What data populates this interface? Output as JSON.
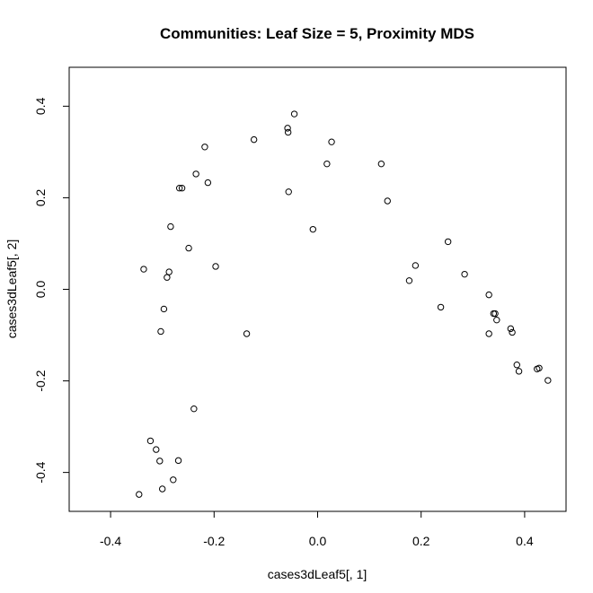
{
  "chart_data": {
    "type": "scatter",
    "title": "Communities: Leaf Size = 5, Proximity MDS",
    "xlabel": "cases3dLeaf5[, 1]",
    "ylabel": "cases3dLeaf5[, 2]",
    "xlim": [
      -0.48,
      0.48
    ],
    "ylim": [
      -0.485,
      0.485
    ],
    "xticks": [
      -0.4,
      -0.2,
      0.0,
      0.2,
      0.4
    ],
    "xtick_labels": [
      "-0.4",
      "-0.2",
      "0.0",
      "0.2",
      "0.4"
    ],
    "yticks": [
      -0.4,
      -0.2,
      0.0,
      0.2,
      0.4
    ],
    "ytick_labels": [
      "-0.4",
      "-0.2",
      "0.0",
      "0.2",
      "0.4"
    ],
    "grid": false,
    "legend": "none",
    "points": [
      {
        "x": -0.045,
        "y": 0.383
      },
      {
        "x": -0.058,
        "y": 0.352
      },
      {
        "x": -0.057,
        "y": 0.343
      },
      {
        "x": -0.123,
        "y": 0.327
      },
      {
        "x": 0.027,
        "y": 0.322
      },
      {
        "x": -0.218,
        "y": 0.311
      },
      {
        "x": 0.018,
        "y": 0.274
      },
      {
        "x": 0.123,
        "y": 0.274
      },
      {
        "x": -0.235,
        "y": 0.252
      },
      {
        "x": -0.212,
        "y": 0.233
      },
      {
        "x": -0.267,
        "y": 0.221
      },
      {
        "x": -0.262,
        "y": 0.221
      },
      {
        "x": -0.056,
        "y": 0.213
      },
      {
        "x": 0.135,
        "y": 0.193
      },
      {
        "x": -0.284,
        "y": 0.137
      },
      {
        "x": -0.009,
        "y": 0.131
      },
      {
        "x": 0.252,
        "y": 0.104
      },
      {
        "x": -0.249,
        "y": 0.09
      },
      {
        "x": -0.197,
        "y": 0.05
      },
      {
        "x": 0.189,
        "y": 0.052
      },
      {
        "x": -0.336,
        "y": 0.044
      },
      {
        "x": -0.287,
        "y": 0.038
      },
      {
        "x": -0.291,
        "y": 0.026
      },
      {
        "x": 0.284,
        "y": 0.033
      },
      {
        "x": 0.177,
        "y": 0.019
      },
      {
        "x": 0.331,
        "y": -0.012
      },
      {
        "x": -0.297,
        "y": -0.043
      },
      {
        "x": 0.238,
        "y": -0.039
      },
      {
        "x": 0.34,
        "y": -0.053
      },
      {
        "x": 0.343,
        "y": -0.053
      },
      {
        "x": 0.346,
        "y": -0.067
      },
      {
        "x": -0.303,
        "y": -0.092
      },
      {
        "x": -0.137,
        "y": -0.097
      },
      {
        "x": 0.373,
        "y": -0.086
      },
      {
        "x": 0.376,
        "y": -0.094
      },
      {
        "x": 0.331,
        "y": -0.097
      },
      {
        "x": 0.385,
        "y": -0.165
      },
      {
        "x": 0.389,
        "y": -0.179
      },
      {
        "x": 0.424,
        "y": -0.174
      },
      {
        "x": 0.428,
        "y": -0.172
      },
      {
        "x": 0.445,
        "y": -0.199
      },
      {
        "x": -0.239,
        "y": -0.261
      },
      {
        "x": -0.323,
        "y": -0.331
      },
      {
        "x": -0.312,
        "y": -0.35
      },
      {
        "x": -0.305,
        "y": -0.375
      },
      {
        "x": -0.269,
        "y": -0.374
      },
      {
        "x": -0.279,
        "y": -0.416
      },
      {
        "x": -0.3,
        "y": -0.436
      },
      {
        "x": -0.345,
        "y": -0.448
      }
    ]
  }
}
